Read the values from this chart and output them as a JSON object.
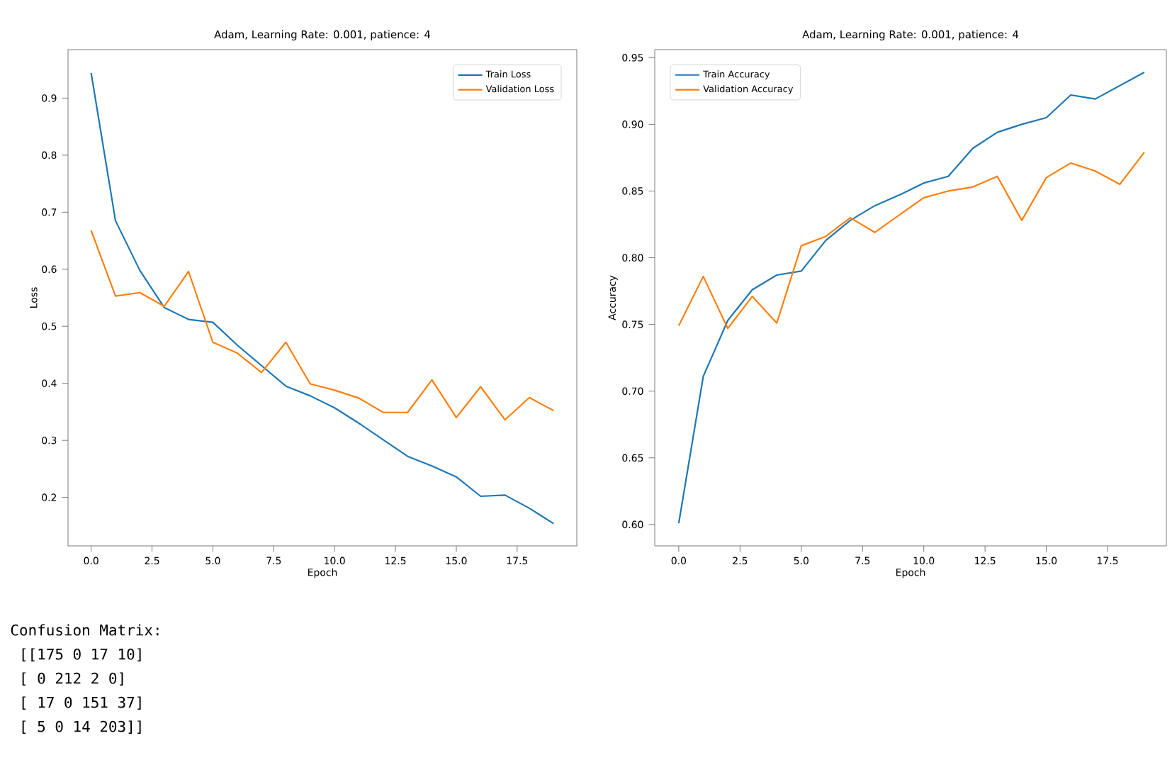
{
  "chart_data": [
    {
      "type": "line",
      "title": "Adam, Learning Rate: 0.001, patience: 4",
      "xlabel": "Epoch",
      "ylabel": "Loss",
      "x": [
        0,
        1,
        2,
        3,
        4,
        5,
        6,
        7,
        8,
        9,
        10,
        11,
        12,
        13,
        14,
        15,
        16,
        17,
        18,
        19
      ],
      "series": [
        {
          "name": "Train Loss",
          "color": "#1f77b4",
          "values": [
            0.944,
            0.685,
            0.598,
            0.533,
            0.512,
            0.507,
            0.467,
            0.431,
            0.395,
            0.378,
            0.357,
            0.33,
            0.301,
            0.272,
            0.255,
            0.236,
            0.202,
            0.204,
            0.181,
            0.154
          ]
        },
        {
          "name": "Validation Loss",
          "color": "#ff7f0e",
          "values": [
            0.668,
            0.553,
            0.559,
            0.535,
            0.596,
            0.472,
            0.453,
            0.419,
            0.472,
            0.399,
            0.388,
            0.374,
            0.349,
            0.349,
            0.406,
            0.34,
            0.394,
            0.336,
            0.375,
            0.352
          ]
        }
      ],
      "xlim": [
        -0.95,
        19.95
      ],
      "ylim": [
        0.115,
        0.985
      ],
      "xticks": [
        {
          "value": 0,
          "label": "0.0"
        },
        {
          "value": 2.5,
          "label": "2.5"
        },
        {
          "value": 5,
          "label": "5.0"
        },
        {
          "value": 7.5,
          "label": "7.5"
        },
        {
          "value": 10,
          "label": "10.0"
        },
        {
          "value": 12.5,
          "label": "12.5"
        },
        {
          "value": 15,
          "label": "15.0"
        },
        {
          "value": 17.5,
          "label": "17.5"
        }
      ],
      "yticks": [
        0.2,
        0.3,
        0.4,
        0.5,
        0.6,
        0.7,
        0.8,
        0.9
      ],
      "legend": "top right",
      "marker": "none",
      "line_style": "solid",
      "grid": false
    },
    {
      "type": "line",
      "title": "Adam, Learning Rate: 0.001, patience: 4",
      "xlabel": "Epoch",
      "ylabel": "Accuracy",
      "x": [
        0,
        1,
        2,
        3,
        4,
        5,
        6,
        7,
        8,
        9,
        10,
        11,
        12,
        13,
        14,
        15,
        16,
        17,
        18,
        19
      ],
      "series": [
        {
          "name": "Train Accuracy",
          "color": "#1f77b4",
          "values": [
            0.601,
            0.711,
            0.753,
            0.776,
            0.787,
            0.79,
            0.813,
            0.828,
            0.839,
            0.847,
            0.856,
            0.861,
            0.882,
            0.894,
            0.9,
            0.905,
            0.922,
            0.919,
            0.929,
            0.939
          ]
        },
        {
          "name": "Validation Accuracy",
          "color": "#ff7f0e",
          "values": [
            0.749,
            0.786,
            0.747,
            0.771,
            0.751,
            0.809,
            0.816,
            0.83,
            0.819,
            0.832,
            0.845,
            0.85,
            0.853,
            0.861,
            0.828,
            0.86,
            0.871,
            0.865,
            0.855,
            0.879
          ]
        }
      ],
      "xlim": [
        -0.98,
        19.9
      ],
      "ylim": [
        0.584,
        0.956
      ],
      "xticks": [
        {
          "value": 0,
          "label": "0.0"
        },
        {
          "value": 2.5,
          "label": "2.5"
        },
        {
          "value": 5,
          "label": "5.0"
        },
        {
          "value": 7.5,
          "label": "7.5"
        },
        {
          "value": 10,
          "label": "10.0"
        },
        {
          "value": 12.5,
          "label": "12.5"
        },
        {
          "value": 15,
          "label": "15.0"
        },
        {
          "value": 17.5,
          "label": "17.5"
        }
      ],
      "yticks": [
        {
          "value": 0.6,
          "label": "0.60"
        },
        {
          "value": 0.65,
          "label": "0.65"
        },
        {
          "value": 0.7,
          "label": "0.70"
        },
        {
          "value": 0.75,
          "label": "0.75"
        },
        {
          "value": 0.8,
          "label": "0.80"
        },
        {
          "value": 0.85,
          "label": "0.85"
        },
        {
          "value": 0.9,
          "label": "0.90"
        },
        {
          "value": 0.95,
          "label": "0.95"
        }
      ],
      "legend": "top left",
      "marker": "none",
      "line_style": "solid",
      "grid": false
    },
    {
      "type": "other",
      "title": "Confusion Matrix:",
      "annotations": [
        " [[175   0  17  10]",
        " [  0 212   2   0]",
        " [ 17   0 151  37]",
        " [  5   0  14 203]]"
      ]
    }
  ]
}
